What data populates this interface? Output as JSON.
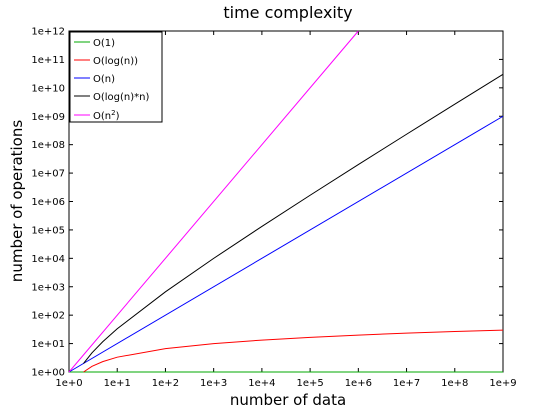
{
  "chart_data": {
    "type": "line",
    "title": "time complexity",
    "xlabel": "number of data",
    "ylabel": "number of operations",
    "xscale": "log",
    "yscale": "log",
    "xlim": [
      1,
      1000000000
    ],
    "ylim": [
      1,
      1000000000000
    ],
    "xticks": [
      "1e+0",
      "1e+1",
      "1e+2",
      "1e+3",
      "1e+4",
      "1e+5",
      "1e+6",
      "1e+7",
      "1e+8",
      "1e+9"
    ],
    "yticks": [
      "1e+00",
      "1e+01",
      "1e+02",
      "1e+03",
      "1e+04",
      "1e+05",
      "1e+06",
      "1e+07",
      "1e+08",
      "1e+09",
      "1e+10",
      "1e+11",
      "1e+12"
    ],
    "grid": false,
    "legend_position": "top-left",
    "series": [
      {
        "name": "O(1)",
        "color": "#00aa00",
        "x": [
          1,
          1000000000
        ],
        "y": [
          1,
          1
        ]
      },
      {
        "name": "O(log(n))",
        "color": "#ff0000",
        "x": [
          2,
          3,
          5,
          10,
          100,
          1000,
          10000,
          100000,
          1000000,
          10000000,
          100000000,
          1000000000
        ],
        "y": [
          1,
          1.58,
          2.32,
          3.32,
          6.64,
          9.97,
          13.29,
          16.61,
          19.93,
          23.25,
          26.58,
          29.9
        ]
      },
      {
        "name": "O(n)",
        "color": "#0000ff",
        "x": [
          1,
          1000000000
        ],
        "y": [
          1,
          1000000000
        ]
      },
      {
        "name": "O(log(n)*n)",
        "color": "#000000",
        "x": [
          2,
          3,
          5,
          10,
          100,
          1000,
          10000,
          100000,
          1000000,
          10000000,
          100000000,
          1000000000
        ],
        "y": [
          2,
          4.75,
          11.6,
          33.2,
          664,
          9966,
          132900,
          1661000,
          19930000,
          232500000,
          2658000000,
          29900000000
        ]
      },
      {
        "name": "O(n2)",
        "color": "#ff00ff",
        "x": [
          1,
          1000000
        ],
        "y": [
          1,
          1000000000000
        ]
      }
    ]
  },
  "legend": {
    "labels": [
      "O(1)",
      "O(log(n))",
      "O(n)",
      "O(log(n)*n)"
    ],
    "last_base": "O(n",
    "last_sup": "2",
    "last_close": ")"
  }
}
